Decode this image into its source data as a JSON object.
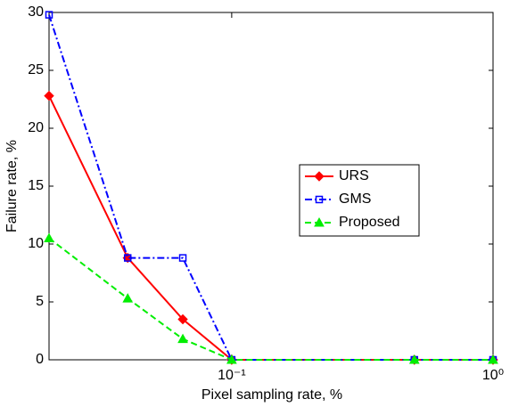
{
  "chart_data": {
    "type": "line",
    "xlabel": "Pixel sampling rate, %",
    "ylabel": "Failure rate, %",
    "x": [
      0.02,
      0.04,
      0.065,
      0.1,
      0.5,
      1
    ],
    "xscale": "log",
    "xlim": [
      0.02,
      1
    ],
    "xticks": [
      {
        "value": 0.1,
        "label": "10⁻¹"
      },
      {
        "value": 1,
        "label": "10⁰"
      }
    ],
    "ylim": [
      0,
      30
    ],
    "yticks": [
      0,
      5,
      10,
      15,
      20,
      25,
      30
    ],
    "grid": false,
    "legend": "right",
    "series": [
      {
        "name": "URS",
        "color": "#ff0000",
        "linestyle": "solid",
        "marker": "diamond",
        "values": [
          22.8,
          8.8,
          3.5,
          0,
          0,
          0
        ]
      },
      {
        "name": "GMS",
        "color": "#0000ff",
        "linestyle": "dashdot",
        "marker": "square",
        "values": [
          29.8,
          8.8,
          8.8,
          0,
          0,
          0
        ]
      },
      {
        "name": "Proposed",
        "color": "#00ee00",
        "linestyle": "dashed",
        "marker": "triangle",
        "values": [
          10.5,
          5.3,
          1.8,
          0,
          0,
          0
        ]
      }
    ]
  }
}
